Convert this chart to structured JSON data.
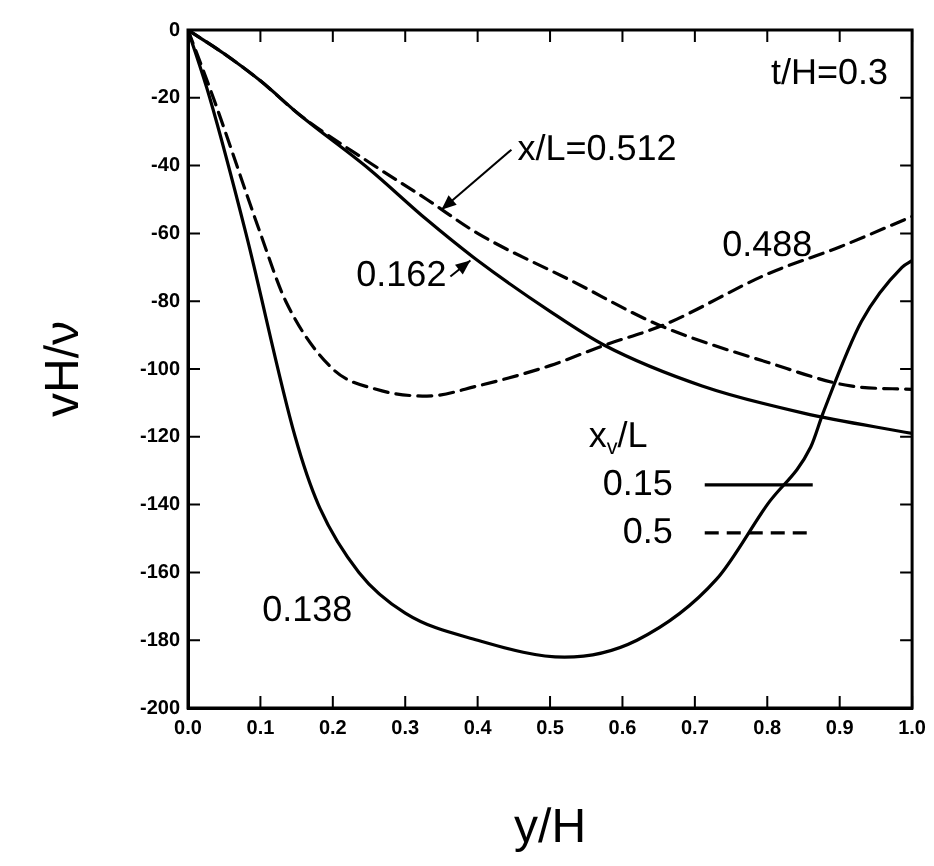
{
  "chart_data": {
    "type": "line",
    "xlabel": "y/H",
    "ylabel": "vH/ν",
    "legend_title": "x$_{v}$/L",
    "legend": "center",
    "grid": false,
    "marker": "none",
    "xlim": [
      0,
      1
    ],
    "xticks": [
      {
        "value": 0,
        "label": "0.0"
      },
      {
        "value": 0.1,
        "label": "0.1"
      },
      {
        "value": 0.2,
        "label": "0.2"
      },
      {
        "value": 0.3,
        "label": "0.3"
      },
      {
        "value": 0.4,
        "label": "0.4"
      },
      {
        "value": 0.5,
        "label": "0.5"
      },
      {
        "value": 0.6,
        "label": "0.6"
      },
      {
        "value": 0.7,
        "label": "0.7"
      },
      {
        "value": 0.8,
        "label": "0.8"
      },
      {
        "value": 0.9,
        "label": "0.9"
      },
      {
        "value": 1,
        "label": "1.0"
      }
    ],
    "ylim": [
      -200,
      0
    ],
    "yticks": [
      -200,
      -180,
      -160,
      -140,
      -120,
      -100,
      -80,
      -60,
      -40,
      -20,
      0
    ],
    "series": [
      {
        "name": "0.15",
        "color": "#000000",
        "line_style": "solid",
        "x": [
          0,
          0.03,
          0.08,
          0.148,
          0.18,
          0.236,
          0.3,
          0.4,
          0.52,
          0.62,
          0.73,
          0.8,
          0.86,
          0.877,
          0.93,
          0.986,
          1.0
        ],
        "values": [
          0,
          -20,
          -60,
          -120,
          -140,
          -160,
          -172,
          -180,
          -185,
          -180,
          -162,
          -140,
          -123,
          -113,
          -86,
          -70,
          -68
        ]
      },
      {
        "color": "#000000",
        "line_style": "solid",
        "x": [
          0,
          0.05,
          0.1,
          0.154,
          0.25,
          0.33,
          0.4,
          0.5,
          0.575,
          0.71,
          0.85,
          1.0
        ],
        "values": [
          0,
          -7,
          -15,
          -25,
          -41,
          -56,
          -68,
          -83,
          -93,
          -105,
          -113,
          -119
        ]
      },
      {
        "name": "0.5",
        "color": "#000000",
        "line_style": "dashed",
        "x": [
          0,
          0.035,
          0.1,
          0.135,
          0.2,
          0.26,
          0.33,
          0.4,
          0.5,
          0.575,
          0.657,
          0.8,
          0.9,
          1.0
        ],
        "values": [
          0,
          -20,
          -60,
          -80,
          -100,
          -106,
          -108,
          -105,
          -99,
          -93,
          -87,
          -72,
          -64,
          -55
        ]
      },
      {
        "color": "#000000",
        "line_style": "dashed",
        "x": [
          0,
          0.05,
          0.1,
          0.154,
          0.25,
          0.33,
          0.4,
          0.53,
          0.65,
          0.8,
          0.915,
          1.0
        ],
        "values": [
          0,
          -7,
          -15,
          -25,
          -39,
          -50,
          -60,
          -74,
          -87,
          -98,
          -105,
          -106
        ]
      }
    ],
    "annotations": [
      "t/H=0.3",
      {
        "text": "x/L=0.512",
        "x": 0.35,
        "y": -53
      },
      {
        "text": "0.162",
        "x": 0.39,
        "y": -68
      },
      {
        "text": "0.488",
        "x": 0.8,
        "y": -72
      },
      {
        "text": "0.138",
        "x": 0.26,
        "y": -168
      }
    ]
  }
}
